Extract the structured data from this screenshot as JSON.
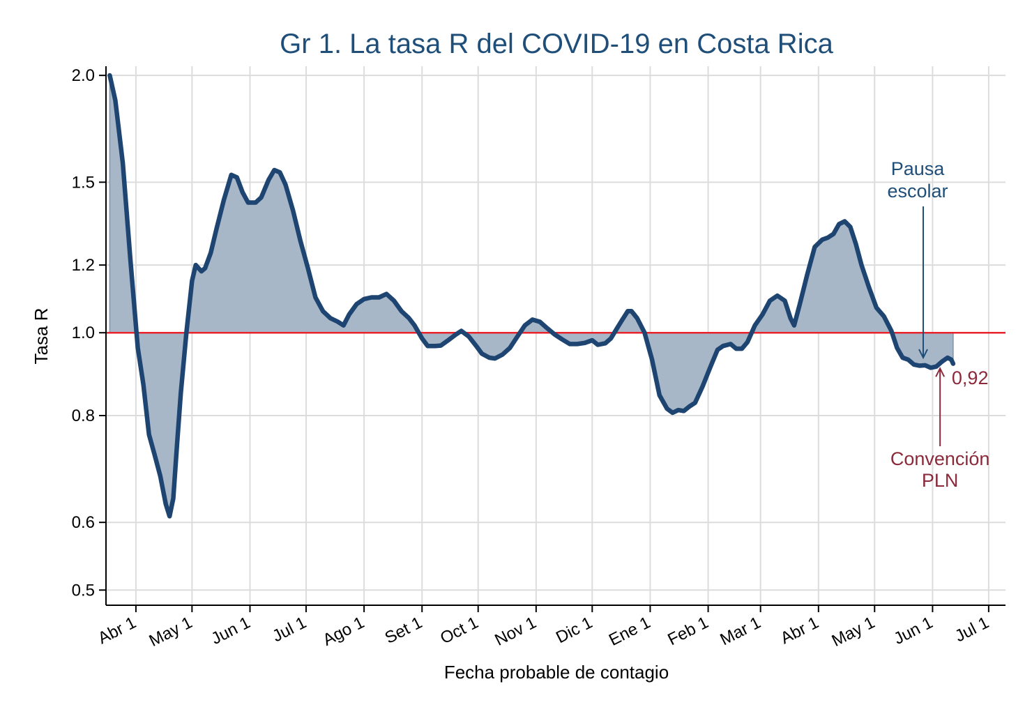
{
  "chart_data": {
    "type": "area",
    "title": "Gr 1. La tasa R del COVID-19 en Costa Rica",
    "xlabel": "Fecha probable de contagio",
    "ylabel": "Tasa R",
    "y_scale": "log",
    "ylim": [
      0.48,
      2.05
    ],
    "grid": true,
    "reference_line": {
      "y": 1.0,
      "color": "#e8232b"
    },
    "y_ticks": [
      {
        "value": 0.5,
        "label": "0.5"
      },
      {
        "value": 0.6,
        "label": "0.6"
      },
      {
        "value": 0.8,
        "label": "0.8"
      },
      {
        "value": 1.0,
        "label": "1.0"
      },
      {
        "value": 1.2,
        "label": "1.2"
      },
      {
        "value": 1.5,
        "label": "1.5"
      },
      {
        "value": 2.0,
        "label": "2.0"
      }
    ],
    "x_ticks": [
      {
        "date": "2020-04-01",
        "label": "Abr 1"
      },
      {
        "date": "2020-05-01",
        "label": "May 1"
      },
      {
        "date": "2020-06-01",
        "label": "Jun 1"
      },
      {
        "date": "2020-07-01",
        "label": "Jul 1"
      },
      {
        "date": "2020-08-01",
        "label": "Ago 1"
      },
      {
        "date": "2020-09-01",
        "label": "Set 1"
      },
      {
        "date": "2020-10-01",
        "label": "Oct 1"
      },
      {
        "date": "2020-11-01",
        "label": "Nov 1"
      },
      {
        "date": "2020-12-01",
        "label": "Dic 1"
      },
      {
        "date": "2021-01-01",
        "label": "Ene 1"
      },
      {
        "date": "2021-02-01",
        "label": "Feb 1"
      },
      {
        "date": "2021-03-01",
        "label": "Mar 1"
      },
      {
        "date": "2021-04-01",
        "label": "Abr 1"
      },
      {
        "date": "2021-05-01",
        "label": "May 1"
      },
      {
        "date": "2021-06-01",
        "label": "Jun 1"
      },
      {
        "date": "2021-07-01",
        "label": "Jul 1"
      }
    ],
    "xlim": [
      "2020-03-16",
      "2021-07-10"
    ],
    "series": [
      {
        "line_color": "#1e4571",
        "fill_color": "#a7b7c8",
        "points": [
          [
            "2020-03-18",
            2.0
          ],
          [
            "2020-03-21",
            1.87
          ],
          [
            "2020-03-25",
            1.58
          ],
          [
            "2020-03-29",
            1.22
          ],
          [
            "2020-04-02",
            0.96
          ],
          [
            "2020-04-05",
            0.87
          ],
          [
            "2020-04-08",
            0.76
          ],
          [
            "2020-04-11",
            0.72
          ],
          [
            "2020-04-14",
            0.68
          ],
          [
            "2020-04-17",
            0.63
          ],
          [
            "2020-04-19",
            0.61
          ],
          [
            "2020-04-21",
            0.64
          ],
          [
            "2020-04-23",
            0.74
          ],
          [
            "2020-04-25",
            0.85
          ],
          [
            "2020-04-28",
            1.0
          ],
          [
            "2020-05-01",
            1.15
          ],
          [
            "2020-05-03",
            1.2
          ],
          [
            "2020-05-06",
            1.18
          ],
          [
            "2020-05-08",
            1.19
          ],
          [
            "2020-05-11",
            1.24
          ],
          [
            "2020-05-14",
            1.32
          ],
          [
            "2020-05-18",
            1.43
          ],
          [
            "2020-05-22",
            1.53
          ],
          [
            "2020-05-25",
            1.52
          ],
          [
            "2020-05-28",
            1.46
          ],
          [
            "2020-05-31",
            1.42
          ],
          [
            "2020-06-04",
            1.42
          ],
          [
            "2020-06-07",
            1.44
          ],
          [
            "2020-06-11",
            1.51
          ],
          [
            "2020-06-14",
            1.55
          ],
          [
            "2020-06-17",
            1.54
          ],
          [
            "2020-06-20",
            1.49
          ],
          [
            "2020-06-24",
            1.39
          ],
          [
            "2020-06-28",
            1.28
          ],
          [
            "2020-07-02",
            1.19
          ],
          [
            "2020-07-06",
            1.1
          ],
          [
            "2020-07-10",
            1.06
          ],
          [
            "2020-07-14",
            1.04
          ],
          [
            "2020-07-18",
            1.03
          ],
          [
            "2020-07-21",
            1.02
          ],
          [
            "2020-07-24",
            1.05
          ],
          [
            "2020-07-28",
            1.08
          ],
          [
            "2020-08-01",
            1.095
          ],
          [
            "2020-08-05",
            1.1
          ],
          [
            "2020-08-09",
            1.1
          ],
          [
            "2020-08-13",
            1.11
          ],
          [
            "2020-08-17",
            1.09
          ],
          [
            "2020-08-21",
            1.06
          ],
          [
            "2020-08-25",
            1.04
          ],
          [
            "2020-08-28",
            1.02
          ],
          [
            "2020-09-01",
            0.985
          ],
          [
            "2020-09-04",
            0.965
          ],
          [
            "2020-09-08",
            0.965
          ],
          [
            "2020-09-11",
            0.966
          ],
          [
            "2020-09-15",
            0.98
          ],
          [
            "2020-09-19",
            0.995
          ],
          [
            "2020-09-22",
            1.005
          ],
          [
            "2020-09-26",
            0.99
          ],
          [
            "2020-09-30",
            0.965
          ],
          [
            "2020-10-03",
            0.945
          ],
          [
            "2020-10-07",
            0.935
          ],
          [
            "2020-10-10",
            0.933
          ],
          [
            "2020-10-14",
            0.943
          ],
          [
            "2020-10-18",
            0.96
          ],
          [
            "2020-10-22",
            0.99
          ],
          [
            "2020-10-26",
            1.02
          ],
          [
            "2020-10-30",
            1.036
          ],
          [
            "2020-11-03",
            1.03
          ],
          [
            "2020-11-07",
            1.012
          ],
          [
            "2020-11-11",
            0.995
          ],
          [
            "2020-11-15",
            0.982
          ],
          [
            "2020-11-19",
            0.97
          ],
          [
            "2020-11-23",
            0.97
          ],
          [
            "2020-11-27",
            0.973
          ],
          [
            "2020-12-01",
            0.98
          ],
          [
            "2020-12-04",
            0.968
          ],
          [
            "2020-12-08",
            0.972
          ],
          [
            "2020-12-11",
            0.985
          ],
          [
            "2020-12-14",
            1.01
          ],
          [
            "2020-12-17",
            1.035
          ],
          [
            "2020-12-20",
            1.06
          ],
          [
            "2020-12-22",
            1.06
          ],
          [
            "2020-12-25",
            1.04
          ],
          [
            "2020-12-29",
            1.0
          ],
          [
            "2021-01-02",
            0.93
          ],
          [
            "2021-01-06",
            0.845
          ],
          [
            "2021-01-10",
            0.815
          ],
          [
            "2021-01-13",
            0.806
          ],
          [
            "2021-01-16",
            0.812
          ],
          [
            "2021-01-19",
            0.81
          ],
          [
            "2021-01-22",
            0.82
          ],
          [
            "2021-01-25",
            0.828
          ],
          [
            "2021-01-29",
            0.865
          ],
          [
            "2021-02-02",
            0.91
          ],
          [
            "2021-02-06",
            0.955
          ],
          [
            "2021-02-09",
            0.965
          ],
          [
            "2021-02-13",
            0.97
          ],
          [
            "2021-02-16",
            0.958
          ],
          [
            "2021-02-19",
            0.958
          ],
          [
            "2021-02-22",
            0.975
          ],
          [
            "2021-02-26",
            1.02
          ],
          [
            "2021-03-02",
            1.05
          ],
          [
            "2021-03-06",
            1.09
          ],
          [
            "2021-03-10",
            1.105
          ],
          [
            "2021-03-14",
            1.09
          ],
          [
            "2021-03-17",
            1.04
          ],
          [
            "2021-03-19",
            1.02
          ],
          [
            "2021-03-22",
            1.08
          ],
          [
            "2021-03-26",
            1.17
          ],
          [
            "2021-03-30",
            1.26
          ],
          [
            "2021-04-03",
            1.285
          ],
          [
            "2021-04-06",
            1.292
          ],
          [
            "2021-04-09",
            1.305
          ],
          [
            "2021-04-12",
            1.34
          ],
          [
            "2021-04-15",
            1.35
          ],
          [
            "2021-04-18",
            1.33
          ],
          [
            "2021-04-21",
            1.27
          ],
          [
            "2021-04-24",
            1.2
          ],
          [
            "2021-04-28",
            1.13
          ],
          [
            "2021-05-02",
            1.07
          ],
          [
            "2021-05-06",
            1.045
          ],
          [
            "2021-05-10",
            1.005
          ],
          [
            "2021-05-13",
            0.96
          ],
          [
            "2021-05-16",
            0.935
          ],
          [
            "2021-05-19",
            0.93
          ],
          [
            "2021-05-22",
            0.918
          ],
          [
            "2021-05-25",
            0.915
          ],
          [
            "2021-05-28",
            0.916
          ],
          [
            "2021-05-31",
            0.91
          ],
          [
            "2021-06-03",
            0.913
          ],
          [
            "2021-06-06",
            0.925
          ],
          [
            "2021-06-09",
            0.935
          ],
          [
            "2021-06-11",
            0.93
          ],
          [
            "2021-06-12",
            0.92
          ]
        ]
      }
    ],
    "annotations": [
      {
        "id": "pausa",
        "lines": [
          "Pausa",
          "escolar"
        ],
        "color": "#1f4e79",
        "arrow_date": "2021-05-27",
        "arrow_value": 0.928
      },
      {
        "id": "convencion",
        "lines": [
          "Convención",
          "PLN"
        ],
        "color": "#8a2a3a",
        "arrow_date": "2021-06-05",
        "arrow_value": 0.917
      },
      {
        "id": "last_value",
        "text": "0,92",
        "color": "#8a2a3a"
      }
    ]
  }
}
